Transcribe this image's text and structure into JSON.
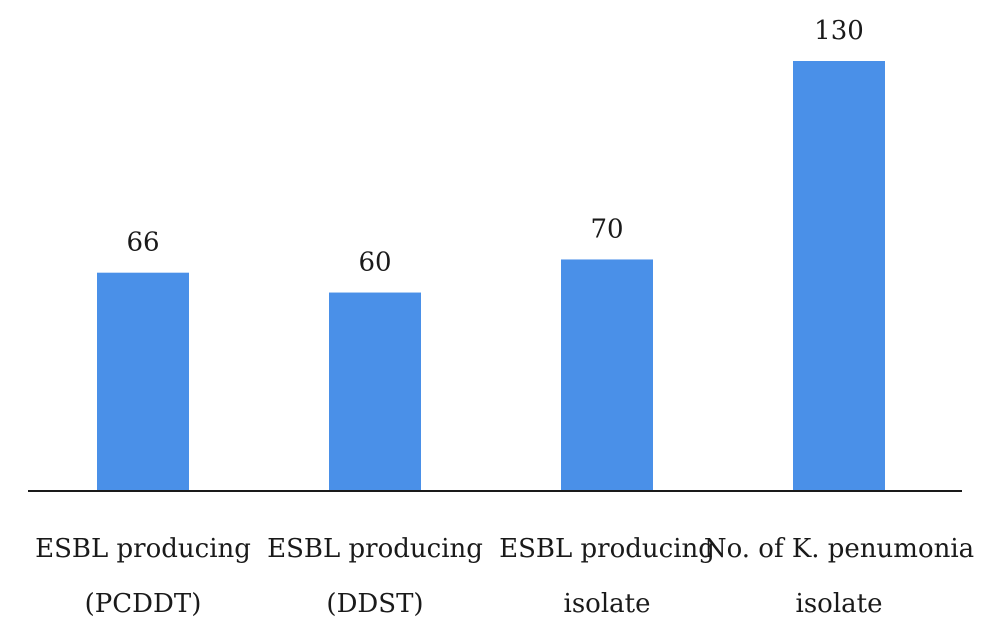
{
  "chart_data": {
    "type": "bar",
    "categories": [
      [
        "ESBL producing",
        "(PCDDT)"
      ],
      [
        "ESBL producing",
        "(DDST)"
      ],
      [
        "ESBL producing",
        "isolate"
      ],
      [
        "No. of K. penumonia",
        "isolate"
      ]
    ],
    "values": [
      66,
      60,
      70,
      130
    ],
    "data_labels": [
      "66",
      "60",
      "70",
      "130"
    ],
    "title": "",
    "xlabel": "",
    "ylabel": "",
    "ylim": [
      0,
      130
    ],
    "grid": false,
    "legend": "none",
    "colors": {
      "bar": "#4a90e8",
      "axis": "#1a1a1a",
      "text": "#1a1a1a"
    }
  }
}
